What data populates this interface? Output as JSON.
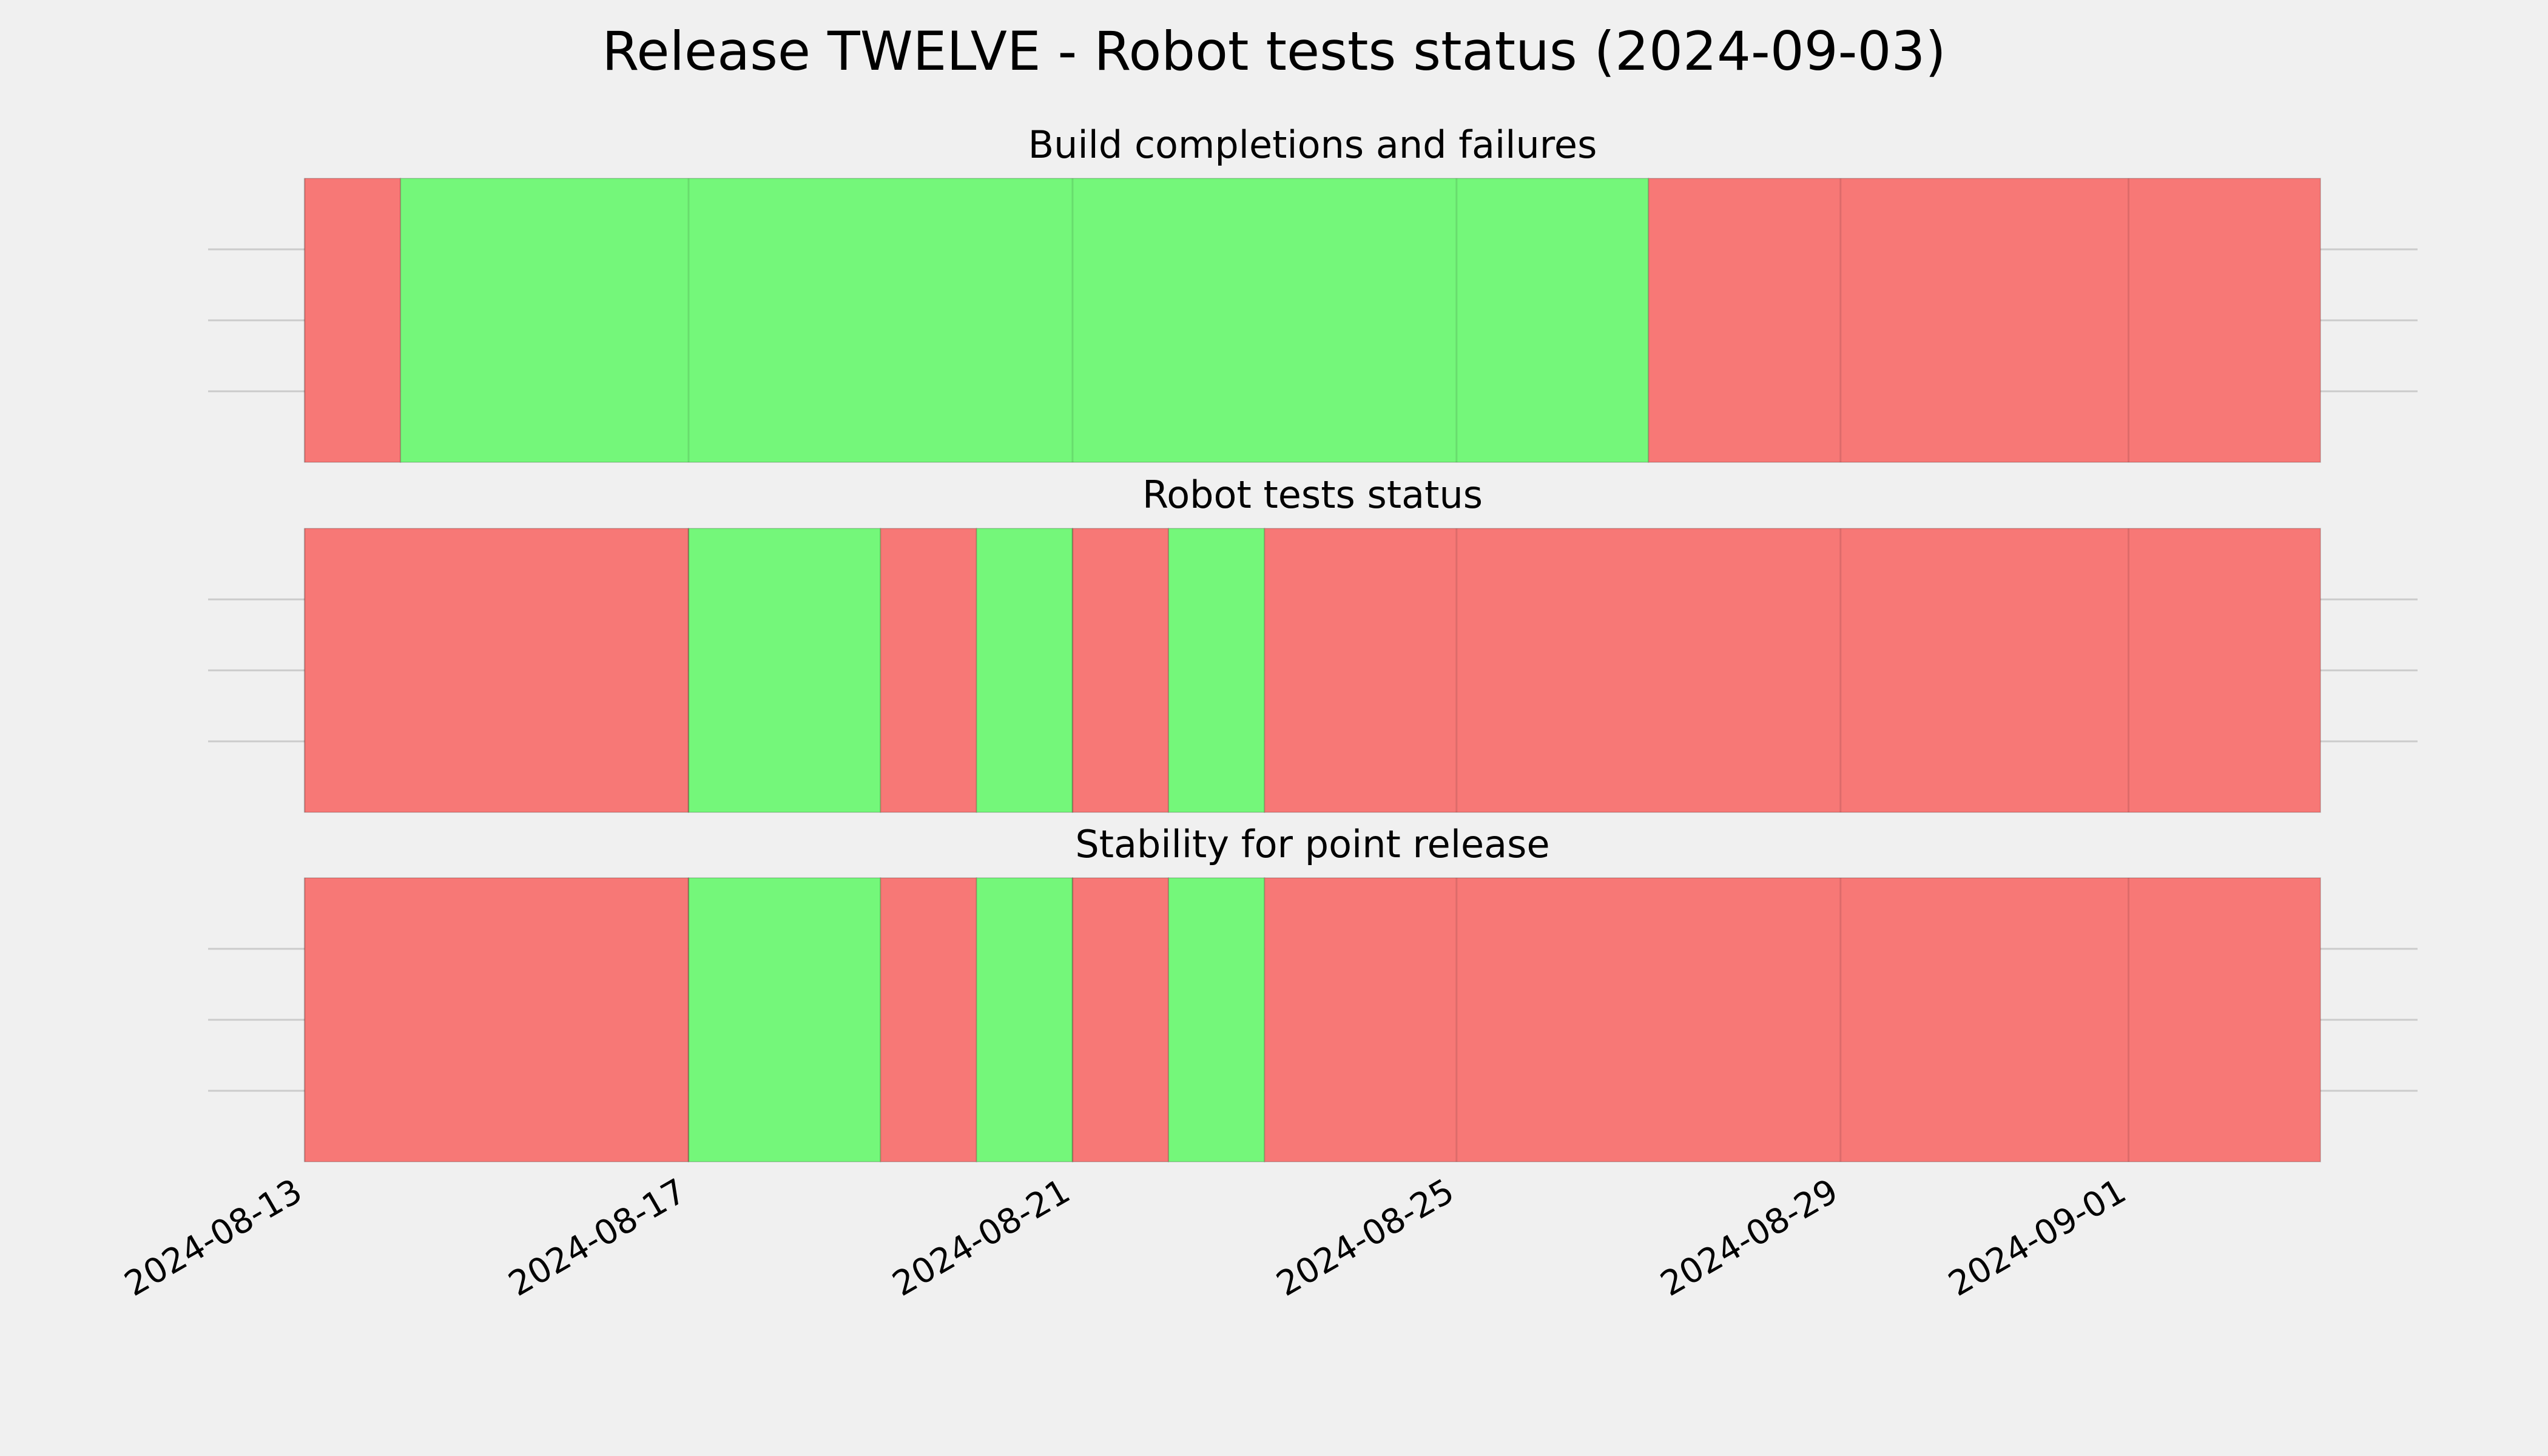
{
  "chart_data": [
    {
      "type": "bar",
      "title": "Build completions and failures",
      "x_type": "date",
      "x_range": [
        "2024-08-13",
        "2024-09-03"
      ],
      "segments": [
        {
          "start": "2024-08-13",
          "end": "2024-08-14",
          "status": "failure"
        },
        {
          "start": "2024-08-14",
          "end": "2024-08-27",
          "status": "success"
        },
        {
          "start": "2024-08-27",
          "end": "2024-09-03",
          "status": "failure"
        }
      ]
    },
    {
      "type": "bar",
      "title": "Robot tests status",
      "x_type": "date",
      "x_range": [
        "2024-08-13",
        "2024-09-03"
      ],
      "segments": [
        {
          "start": "2024-08-13",
          "end": "2024-08-17",
          "status": "failure"
        },
        {
          "start": "2024-08-17",
          "end": "2024-08-19",
          "status": "success"
        },
        {
          "start": "2024-08-19",
          "end": "2024-08-20",
          "status": "failure"
        },
        {
          "start": "2024-08-20",
          "end": "2024-08-21",
          "status": "success"
        },
        {
          "start": "2024-08-21",
          "end": "2024-08-22",
          "status": "failure"
        },
        {
          "start": "2024-08-22",
          "end": "2024-08-23",
          "status": "success"
        },
        {
          "start": "2024-08-23",
          "end": "2024-09-03",
          "status": "failure"
        }
      ]
    },
    {
      "type": "bar",
      "title": "Stability for point release",
      "x_type": "date",
      "x_range": [
        "2024-08-13",
        "2024-09-03"
      ],
      "segments": [
        {
          "start": "2024-08-13",
          "end": "2024-08-17",
          "status": "failure"
        },
        {
          "start": "2024-08-17",
          "end": "2024-08-19",
          "status": "success"
        },
        {
          "start": "2024-08-19",
          "end": "2024-08-20",
          "status": "failure"
        },
        {
          "start": "2024-08-20",
          "end": "2024-08-21",
          "status": "success"
        },
        {
          "start": "2024-08-21",
          "end": "2024-08-22",
          "status": "failure"
        },
        {
          "start": "2024-08-22",
          "end": "2024-08-23",
          "status": "success"
        },
        {
          "start": "2024-08-23",
          "end": "2024-09-03",
          "status": "failure"
        }
      ]
    }
  ],
  "figure": {
    "title": "Release TWELVE - Robot tests status (2024-09-03)",
    "x_ticks": [
      "2024-08-13",
      "2024-08-17",
      "2024-08-21",
      "2024-08-25",
      "2024-08-29",
      "2024-09-01"
    ],
    "grid": true,
    "colors": {
      "success": "#74f77a",
      "failure": "#f77876",
      "background": "#f0f0f0",
      "grid": "#cbcbcb"
    }
  }
}
